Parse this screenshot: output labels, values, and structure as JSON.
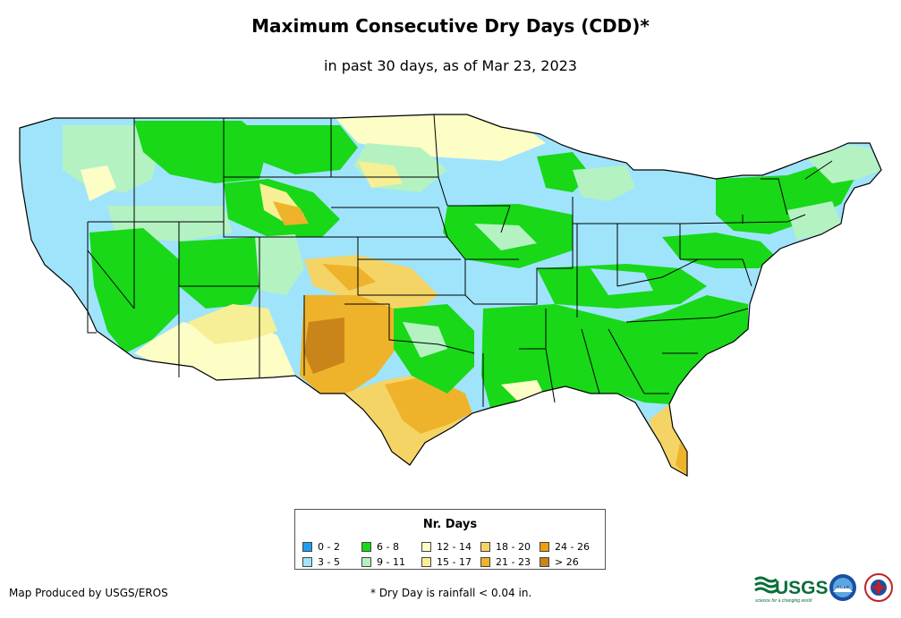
{
  "header": {
    "title": "Maximum Consecutive Dry Days (CDD)*",
    "subtitle": "in past 30 days, as of Mar 23, 2023"
  },
  "legend": {
    "title": "Nr. Days",
    "items": [
      {
        "label": "0 - 2",
        "color": "#1f9ef5"
      },
      {
        "label": "3 - 5",
        "color": "#9fe4fb"
      },
      {
        "label": "6 - 8",
        "color": "#18d818"
      },
      {
        "label": "9 - 11",
        "color": "#b4f2c2"
      },
      {
        "label": "12 - 14",
        "color": "#fdfdc6"
      },
      {
        "label": "15 - 17",
        "color": "#f7ef95"
      },
      {
        "label": "18 - 20",
        "color": "#f5d466"
      },
      {
        "label": "21 - 23",
        "color": "#eeb32a"
      },
      {
        "label": "24 - 26",
        "color": "#eba10c"
      },
      {
        "label": "> 26",
        "color": "#c98519"
      }
    ]
  },
  "footer": {
    "producer": "Map Produced by USGS/EROS",
    "note": "* Dry Day is rainfall < 0.04 in."
  },
  "logos": {
    "usgs": "USGS",
    "usgs_tagline": "science for a changing world",
    "noaa": "noaa"
  }
}
